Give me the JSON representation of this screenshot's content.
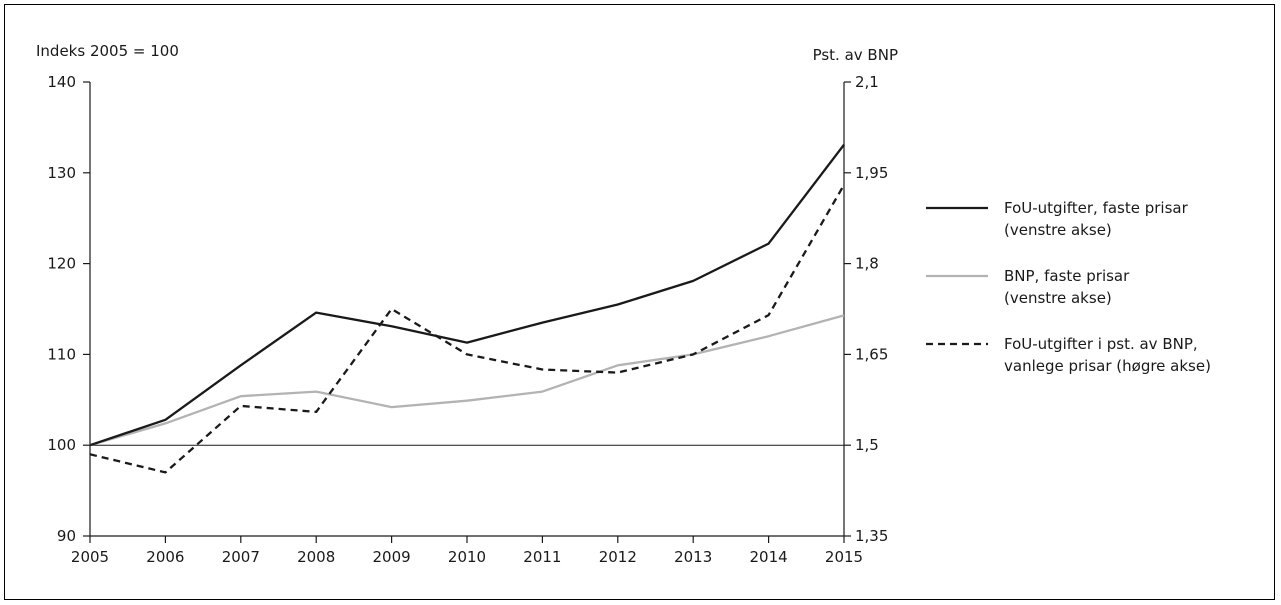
{
  "chart_data": {
    "type": "line",
    "x": [
      "2005",
      "2006",
      "2007",
      "2008",
      "2009",
      "2010",
      "2011",
      "2012",
      "2013",
      "2014",
      "2015"
    ],
    "left_axis": {
      "title": "Indeks 2005 = 100",
      "ylim": [
        90,
        140
      ],
      "ticks": [
        "90",
        "100",
        "110",
        "120",
        "130",
        "140"
      ]
    },
    "right_axis": {
      "title": "Pst. av BNP",
      "ylim": [
        1.35,
        2.1
      ],
      "ticks": [
        "1,35",
        "1,5",
        "1,65",
        "1,8",
        "1,95",
        "2,1"
      ]
    },
    "series": [
      {
        "name": "FoU-utgifter, faste prisar (venstre akse)",
        "legend_lines": [
          "FoU-utgifter, faste prisar",
          "(venstre akse)"
        ],
        "axis": "left",
        "style": "solid",
        "color": "#1a1a1a",
        "values": [
          100,
          102.8,
          108.8,
          114.6,
          113.1,
          111.3,
          113.5,
          115.5,
          118.1,
          122.2,
          133.1
        ]
      },
      {
        "name": "BNP, faste prisar (venstre akse)",
        "legend_lines": [
          "BNP, faste prisar",
          "(venstre akse)"
        ],
        "axis": "left",
        "style": "solid",
        "color": "#b3b3b3",
        "values": [
          100,
          102.4,
          105.4,
          105.9,
          104.2,
          104.9,
          105.9,
          108.8,
          110,
          112,
          114.3
        ]
      },
      {
        "name": "FoU-utgifter i pst. av BNP, vanlege prisar (høgre akse)",
        "legend_lines": [
          "FoU-utgifter i pst. av BNP,",
          "vanlege prisar (høgre akse)"
        ],
        "axis": "right",
        "style": "dashed",
        "color": "#1a1a1a",
        "values": [
          1.485,
          1.455,
          1.565,
          1.555,
          1.725,
          1.65,
          1.625,
          1.62,
          1.65,
          1.715,
          1.93
        ]
      }
    ],
    "reference_line": 100,
    "grid": false,
    "legend_position": "right"
  }
}
